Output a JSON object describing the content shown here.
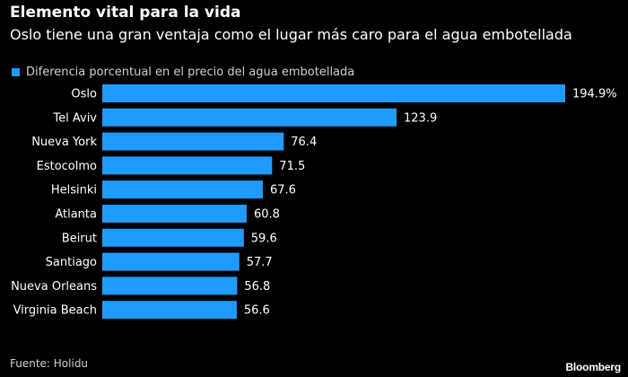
{
  "chart_data": {
    "type": "bar",
    "orientation": "horizontal",
    "title": "Elemento vital para la vida",
    "subtitle": "Oslo tiene una gran ventaja como el lugar más caro para el agua embotellada",
    "legend": {
      "label": "Diferencia porcentual en el precio del agua embotellada",
      "placement": "top-left"
    },
    "categories": [
      "Oslo",
      "Tel Aviv",
      "Nueva York",
      "Estocolmo",
      "Helsinki",
      "Atlanta",
      "Beirut",
      "Santiago",
      "Nueva Orleans",
      "Virginia Beach"
    ],
    "series": [
      {
        "values": [
          194.9,
          123.9,
          76.4,
          71.5,
          67.6,
          60.8,
          59.6,
          57.7,
          56.8,
          56.6
        ],
        "labels": [
          "194.9%",
          "123.9",
          "76.4",
          "71.5",
          "67.6",
          "60.8",
          "59.6",
          "57.7",
          "56.8",
          "56.6"
        ]
      }
    ],
    "xlim": [
      0,
      194.9
    ],
    "grid": false
  },
  "colors": {
    "bar": "#1f9bff",
    "background": "#000000",
    "text": "#ffffff"
  },
  "source": "Fuente: Holidu",
  "logo": "Bloomberg"
}
